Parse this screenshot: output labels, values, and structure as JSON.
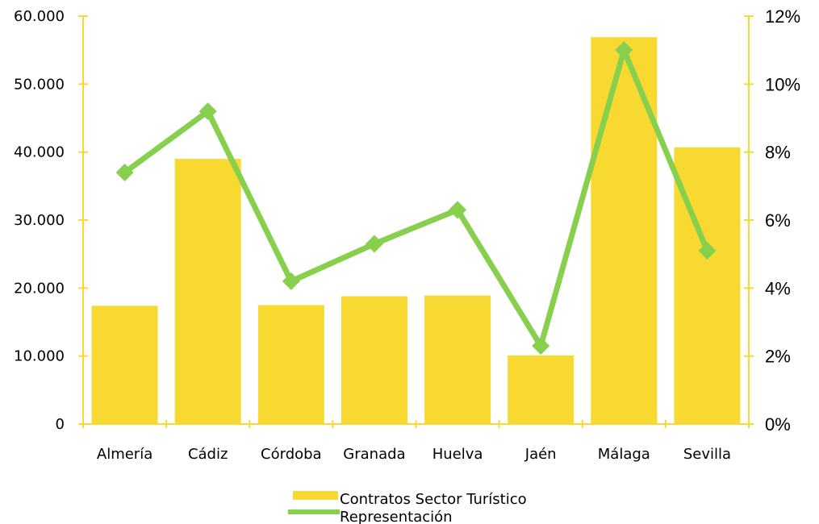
{
  "chart_data": {
    "type": "bar",
    "categories": [
      "Almería",
      "Cádiz",
      "Córdoba",
      "Granada",
      "Huelva",
      "Jaén",
      "Málaga",
      "Sevilla"
    ],
    "series": [
      {
        "name": "Contratos Sector Turístico",
        "type": "bar",
        "axis": "left",
        "color": "#F7D931",
        "values": [
          17400,
          39000,
          17500,
          18800,
          18900,
          10100,
          56900,
          40700
        ]
      },
      {
        "name": "Representación",
        "type": "line",
        "axis": "right",
        "color": "#86D04E",
        "values": [
          7.4,
          9.2,
          4.2,
          5.3,
          6.3,
          2.3,
          11.0,
          5.1
        ]
      }
    ],
    "y_left": {
      "ticks": [
        "0",
        "10.000",
        "20.000",
        "30.000",
        "40.000",
        "50.000",
        "60.000"
      ],
      "ylim": [
        0,
        60000
      ]
    },
    "y_right": {
      "ticks": [
        "0%",
        "2%",
        "4%",
        "6%",
        "8%",
        "10%",
        "12%"
      ],
      "ylim": [
        0,
        12
      ]
    },
    "axis_color": "#F7D931",
    "grid": false,
    "legend_position": "bottom-center"
  }
}
